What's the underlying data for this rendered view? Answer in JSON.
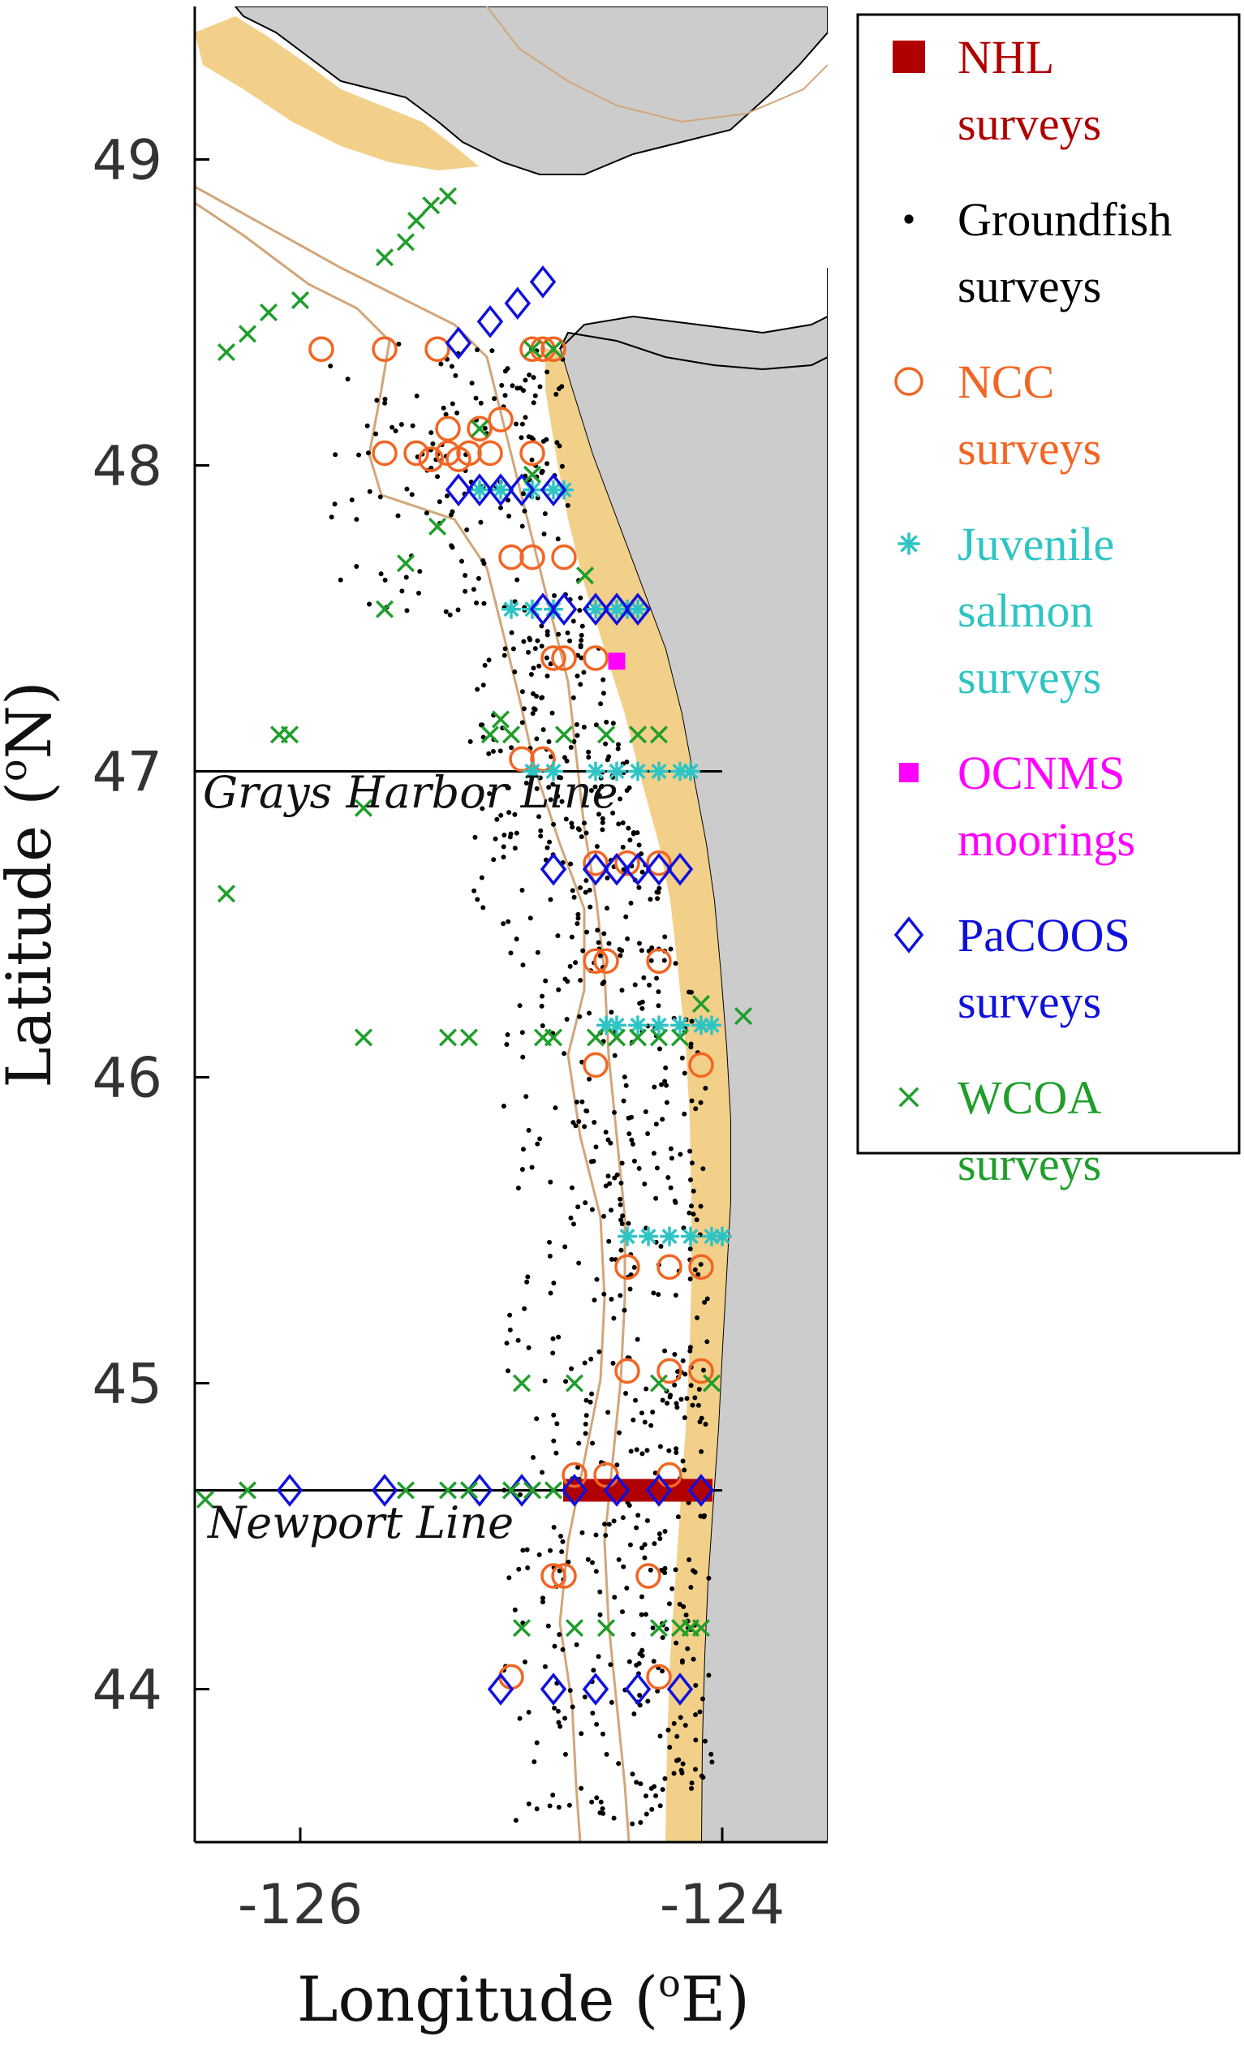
{
  "map": {
    "lon_range": [
      -126.5,
      -123.5
    ],
    "lat_range": [
      43.5,
      49.5
    ],
    "x_ticks": [
      {
        "value": -126,
        "label": "-126"
      },
      {
        "value": -124,
        "label": "-124"
      }
    ],
    "y_ticks": [
      {
        "value": 49,
        "label": "49"
      },
      {
        "value": 48,
        "label": "48"
      },
      {
        "value": 47,
        "label": "47"
      },
      {
        "value": 46,
        "label": "46"
      },
      {
        "value": 45,
        "label": "45"
      },
      {
        "value": 44,
        "label": "44"
      }
    ],
    "xlabel": "Longitude (",
    "xlabel_sup": "o",
    "xlabel_end": "E)",
    "ylabel": "Latitude (",
    "ylabel_sup": "o",
    "ylabel_end": "N)",
    "colors": {
      "land": "#cccccc",
      "shelf": "#f3d08a",
      "isobath": "#d2a679",
      "coast": "#000000"
    },
    "transect_lines": [
      {
        "name": "grays-harbor",
        "label": "Grays Harbor Line",
        "lat": 47.0,
        "lon_start": -126.5,
        "lon_end": -124.0
      },
      {
        "name": "newport",
        "label": "Newport Line",
        "lat": 44.65,
        "lon_start": -126.5,
        "lon_end": -124.0
      }
    ]
  },
  "legend": {
    "items": [
      {
        "key": "nhl",
        "marker": "filled-square",
        "color": "#b00000",
        "lines": [
          "NHL",
          "surveys"
        ]
      },
      {
        "key": "groundfish",
        "marker": "dot",
        "color": "#000000",
        "lines": [
          "Groundfish",
          "surveys"
        ]
      },
      {
        "key": "ncc",
        "marker": "circle",
        "color": "#f26522",
        "lines": [
          "NCC",
          "surveys"
        ]
      },
      {
        "key": "juvenile",
        "marker": "asterisk",
        "color": "#2ec4c4",
        "lines": [
          "Juvenile",
          "salmon",
          "surveys"
        ]
      },
      {
        "key": "ocnms",
        "marker": "small-square",
        "color": "#ff00ff",
        "lines": [
          "OCNMS",
          "moorings"
        ]
      },
      {
        "key": "pacoos",
        "marker": "diamond",
        "color": "#1010dd",
        "lines": [
          "PaCOOS",
          "surveys"
        ]
      },
      {
        "key": "wcoa",
        "marker": "x",
        "color": "#1f9e2a",
        "lines": [
          "WCOA",
          "surveys"
        ]
      }
    ]
  },
  "chart_data": {
    "type": "scatter",
    "xlabel": "Longitude (oE)",
    "ylabel": "Latitude (oN)",
    "xlim": [
      -126.5,
      -123.5
    ],
    "ylim": [
      43.5,
      49.5
    ],
    "series": [
      {
        "name": "NHL surveys",
        "marker": "filled-square",
        "color": "#b00000",
        "points": [
          [
            -124.7,
            44.65
          ],
          [
            -124.6,
            44.65
          ],
          [
            -124.5,
            44.65
          ],
          [
            -124.4,
            44.65
          ],
          [
            -124.3,
            44.65
          ],
          [
            -124.2,
            44.65
          ],
          [
            -124.1,
            44.65
          ]
        ]
      },
      {
        "name": "NCC surveys",
        "marker": "circle",
        "color": "#f26522",
        "points": [
          [
            -125.9,
            48.38
          ],
          [
            -125.6,
            48.38
          ],
          [
            -125.35,
            48.38
          ],
          [
            -124.9,
            48.38
          ],
          [
            -124.85,
            48.38
          ],
          [
            -124.8,
            48.38
          ],
          [
            -125.6,
            48.04
          ],
          [
            -125.45,
            48.04
          ],
          [
            -125.38,
            48.02
          ],
          [
            -125.3,
            48.04
          ],
          [
            -125.25,
            48.02
          ],
          [
            -125.2,
            48.04
          ],
          [
            -125.1,
            48.04
          ],
          [
            -125.3,
            48.12
          ],
          [
            -125.15,
            48.12
          ],
          [
            -125.05,
            48.15
          ],
          [
            -124.9,
            48.04
          ],
          [
            -125.0,
            47.7
          ],
          [
            -124.9,
            47.7
          ],
          [
            -124.75,
            47.7
          ],
          [
            -124.8,
            47.37
          ],
          [
            -124.75,
            47.37
          ],
          [
            -124.6,
            47.37
          ],
          [
            -124.95,
            47.04
          ],
          [
            -124.85,
            47.04
          ],
          [
            -124.6,
            46.7
          ],
          [
            -124.45,
            46.7
          ],
          [
            -124.3,
            46.7
          ],
          [
            -124.6,
            46.38
          ],
          [
            -124.55,
            46.38
          ],
          [
            -124.3,
            46.38
          ],
          [
            -124.6,
            46.04
          ],
          [
            -124.1,
            46.04
          ],
          [
            -124.45,
            45.38
          ],
          [
            -124.25,
            45.38
          ],
          [
            -124.1,
            45.38
          ],
          [
            -124.45,
            45.04
          ],
          [
            -124.25,
            45.04
          ],
          [
            -124.1,
            45.04
          ],
          [
            -124.7,
            44.7
          ],
          [
            -124.55,
            44.7
          ],
          [
            -124.25,
            44.7
          ],
          [
            -124.8,
            44.37
          ],
          [
            -124.75,
            44.37
          ],
          [
            -124.35,
            44.37
          ],
          [
            -125.0,
            44.04
          ],
          [
            -124.3,
            44.04
          ]
        ]
      },
      {
        "name": "Juvenile salmon surveys",
        "marker": "asterisk",
        "color": "#2ec4c4",
        "points": [
          [
            -125.15,
            47.92
          ],
          [
            -125.05,
            47.92
          ],
          [
            -124.9,
            47.92
          ],
          [
            -124.8,
            47.92
          ],
          [
            -124.75,
            47.92
          ],
          [
            -125.0,
            47.53
          ],
          [
            -124.9,
            47.53
          ],
          [
            -124.8,
            47.53
          ],
          [
            -124.6,
            47.53
          ],
          [
            -124.5,
            47.53
          ],
          [
            -124.45,
            47.53
          ],
          [
            -124.4,
            47.53
          ],
          [
            -124.9,
            47.0
          ],
          [
            -124.8,
            47.0
          ],
          [
            -124.6,
            47.0
          ],
          [
            -124.5,
            47.0
          ],
          [
            -124.4,
            47.0
          ],
          [
            -124.3,
            47.0
          ],
          [
            -124.2,
            47.0
          ],
          [
            -124.15,
            47.0
          ],
          [
            -124.55,
            46.17
          ],
          [
            -124.5,
            46.17
          ],
          [
            -124.4,
            46.17
          ],
          [
            -124.3,
            46.17
          ],
          [
            -124.2,
            46.17
          ],
          [
            -124.1,
            46.17
          ],
          [
            -124.05,
            46.17
          ],
          [
            -124.45,
            45.48
          ],
          [
            -124.35,
            45.48
          ],
          [
            -124.25,
            45.48
          ],
          [
            -124.15,
            45.48
          ],
          [
            -124.05,
            45.48
          ],
          [
            -124.0,
            45.48
          ]
        ]
      },
      {
        "name": "OCNMS moorings",
        "marker": "small-square",
        "color": "#ff00ff",
        "points": [
          [
            -124.5,
            47.36
          ]
        ]
      },
      {
        "name": "PaCOOS surveys",
        "marker": "diamond",
        "color": "#1010dd",
        "points": [
          [
            -125.25,
            48.4
          ],
          [
            -125.1,
            48.47
          ],
          [
            -124.97,
            48.53
          ],
          [
            -124.85,
            48.6
          ],
          [
            -125.25,
            47.92
          ],
          [
            -125.15,
            47.92
          ],
          [
            -125.05,
            47.92
          ],
          [
            -124.95,
            47.92
          ],
          [
            -124.8,
            47.92
          ],
          [
            -124.85,
            47.53
          ],
          [
            -124.75,
            47.53
          ],
          [
            -124.6,
            47.53
          ],
          [
            -124.5,
            47.53
          ],
          [
            -124.4,
            47.53
          ],
          [
            -124.8,
            46.68
          ],
          [
            -124.6,
            46.68
          ],
          [
            -124.5,
            46.68
          ],
          [
            -124.4,
            46.68
          ],
          [
            -124.3,
            46.68
          ],
          [
            -124.2,
            46.68
          ],
          [
            -126.05,
            44.65
          ],
          [
            -125.6,
            44.65
          ],
          [
            -125.15,
            44.65
          ],
          [
            -124.95,
            44.65
          ],
          [
            -124.7,
            44.65
          ],
          [
            -124.5,
            44.65
          ],
          [
            -124.3,
            44.65
          ],
          [
            -124.1,
            44.65
          ],
          [
            -125.05,
            44.0
          ],
          [
            -124.8,
            44.0
          ],
          [
            -124.6,
            44.0
          ],
          [
            -124.4,
            44.0
          ],
          [
            -124.2,
            44.0
          ]
        ]
      },
      {
        "name": "WCOA surveys",
        "marker": "x",
        "color": "#1f9e2a",
        "points": [
          [
            -126.35,
            48.37
          ],
          [
            -126.25,
            48.43
          ],
          [
            -126.15,
            48.5
          ],
          [
            -126.0,
            48.54
          ],
          [
            -125.6,
            48.68
          ],
          [
            -125.5,
            48.73
          ],
          [
            -125.45,
            48.8
          ],
          [
            -125.38,
            48.85
          ],
          [
            -125.3,
            48.88
          ],
          [
            -124.9,
            48.38
          ],
          [
            -124.8,
            48.38
          ],
          [
            -125.15,
            48.12
          ],
          [
            -124.9,
            47.97
          ],
          [
            -125.35,
            47.8
          ],
          [
            -125.5,
            47.68
          ],
          [
            -125.6,
            47.53
          ],
          [
            -124.65,
            47.64
          ],
          [
            -126.1,
            47.12
          ],
          [
            -126.05,
            47.12
          ],
          [
            -125.1,
            47.12
          ],
          [
            -125.0,
            47.12
          ],
          [
            -124.75,
            47.12
          ],
          [
            -124.55,
            47.12
          ],
          [
            -124.4,
            47.12
          ],
          [
            -124.3,
            47.12
          ],
          [
            -125.05,
            47.17
          ],
          [
            -126.35,
            46.6
          ],
          [
            -125.7,
            46.88
          ],
          [
            -125.7,
            46.13
          ],
          [
            -125.3,
            46.13
          ],
          [
            -125.2,
            46.13
          ],
          [
            -124.85,
            46.13
          ],
          [
            -124.8,
            46.13
          ],
          [
            -124.6,
            46.13
          ],
          [
            -124.5,
            46.13
          ],
          [
            -124.4,
            46.13
          ],
          [
            -124.3,
            46.13
          ],
          [
            -124.2,
            46.13
          ],
          [
            -124.1,
            46.24
          ],
          [
            -123.9,
            46.2
          ],
          [
            -124.95,
            45.0
          ],
          [
            -124.7,
            45.0
          ],
          [
            -124.3,
            45.0
          ],
          [
            -124.05,
            45.0
          ],
          [
            -126.45,
            44.62
          ],
          [
            -126.25,
            44.65
          ],
          [
            -125.5,
            44.65
          ],
          [
            -125.3,
            44.65
          ],
          [
            -125.2,
            44.65
          ],
          [
            -125.0,
            44.65
          ],
          [
            -124.9,
            44.65
          ],
          [
            -124.8,
            44.65
          ],
          [
            -124.95,
            44.2
          ],
          [
            -124.7,
            44.2
          ],
          [
            -124.55,
            44.2
          ],
          [
            -124.3,
            44.2
          ],
          [
            -124.2,
            44.2
          ],
          [
            -124.15,
            44.2
          ],
          [
            -124.1,
            44.2
          ]
        ]
      }
    ],
    "groundfish_samples": {
      "name": "Groundfish surveys",
      "marker": "dot",
      "color": "#000000",
      "count": 900,
      "description": "dense stations over the shelf from about 43.5 to 48.4 N"
    }
  }
}
